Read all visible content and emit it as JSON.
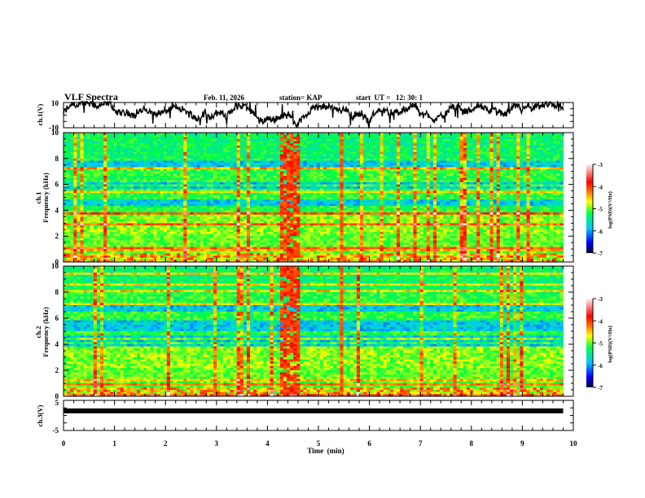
{
  "header": {
    "title": "VLF Spectra",
    "date": "Feb. 11, 2026",
    "station": "station= KAP",
    "start": "start  UT =   12: 30: 1"
  },
  "colors": {
    "axis": "#000000",
    "trace": "#000000",
    "colormap": [
      "#000033",
      "#0000ff",
      "#00c8ff",
      "#00ff40",
      "#ffff00",
      "#ff8000",
      "#ff0000",
      "#ffffff"
    ]
  },
  "chart_data": [
    {
      "type": "line",
      "name": "ch1-waveform",
      "ylabel": "ch.1(V)",
      "ylim": [
        -10,
        10
      ],
      "yticks": [
        "10",
        "-10"
      ],
      "xlim": [
        0,
        10
      ],
      "data_end_min": 9.8,
      "description_series": "voltage trace fluctuating roughly between -10 and 10 V"
    },
    {
      "type": "heatmap",
      "name": "ch1-spectrogram",
      "ylabel_line1": "ch.1",
      "ylabel_line2": "Frequency (kHz)",
      "ylim": [
        0,
        10
      ],
      "yticks": [
        "0",
        "2",
        "4",
        "6",
        "8",
        "10"
      ],
      "xlim": [
        0,
        10
      ],
      "data_end_min": 9.8,
      "colorbar": {
        "label": "log(PSD)(V²/Hz)",
        "range": [
          -7,
          -3
        ],
        "ticks": [
          "-3",
          "-4",
          "-5",
          "-6",
          "-7"
        ]
      },
      "features": {
        "low_power_bands_kHz": [
          [
            4.2,
            4.8
          ],
          [
            5.6,
            6.2
          ],
          [
            7.3,
            7.8
          ]
        ],
        "burst_time_min": [
          4.25,
          4.65
        ],
        "burst2_time_min": [
          5.4,
          5.5
        ]
      }
    },
    {
      "type": "heatmap",
      "name": "ch2-spectrogram",
      "ylabel_line1": "ch.2",
      "ylabel_line2": "Frequency (kHz)",
      "ylim": [
        0,
        10
      ],
      "yticks": [
        "0",
        "2",
        "4",
        "6",
        "8",
        "10"
      ],
      "xlim": [
        0,
        10
      ],
      "data_end_min": 9.8,
      "colorbar": {
        "label": "log(PSD)(V²/Hz)",
        "range": [
          -7,
          -3
        ],
        "ticks": [
          "-3",
          "-4",
          "-5",
          "-6",
          "-7"
        ]
      },
      "features": {
        "low_power_bands_kHz": [
          [
            3.9,
            4.6
          ],
          [
            5.0,
            5.8
          ],
          [
            6.3,
            7.0
          ]
        ],
        "burst_time_min": [
          4.25,
          4.65
        ],
        "burst2_time_min": [
          5.4,
          5.5
        ]
      }
    },
    {
      "type": "line",
      "name": "ch3-waveform",
      "ylabel": "ch.3(V)",
      "ylim": [
        -5,
        5
      ],
      "yticks": [
        "5",
        "-5"
      ],
      "xlim": [
        0,
        10
      ],
      "data_end_min": 9.8,
      "level_V": 1.5,
      "xlabel": "Time  (min)",
      "xticks": [
        "0",
        "1",
        "2",
        "3",
        "4",
        "5",
        "6",
        "7",
        "8",
        "9",
        "10"
      ]
    }
  ]
}
